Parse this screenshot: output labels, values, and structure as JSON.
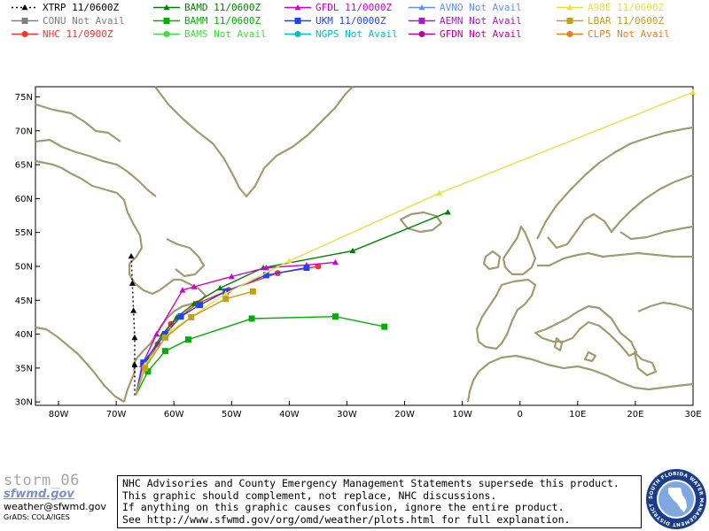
{
  "legend": [
    {
      "model": "XTRP",
      "status": "11/0600Z",
      "color": "#000000",
      "marker": "triangle",
      "dash": true
    },
    {
      "model": "CONU",
      "status": "Not Avail",
      "color": "#808080",
      "marker": "square",
      "dash": false
    },
    {
      "model": "NHC",
      "status": "11/0900Z",
      "color": "#ff3030",
      "marker": "circle",
      "dash": false
    },
    {
      "model": "BAMD",
      "status": "11/0600Z",
      "color": "#008000",
      "marker": "triangle",
      "dash": false
    },
    {
      "model": "BAMM",
      "status": "11/0600Z",
      "color": "#00b000",
      "marker": "square",
      "dash": false
    },
    {
      "model": "BAMS",
      "status": "Not Avail",
      "color": "#40e040",
      "marker": "circle",
      "dash": false
    },
    {
      "model": "GFDL",
      "status": "11/0000Z",
      "color": "#d000d0",
      "marker": "triangle",
      "dash": false
    },
    {
      "model": "UKM",
      "status": "11/0000Z",
      "color": "#2040ff",
      "marker": "square",
      "dash": false
    },
    {
      "model": "NGPS",
      "status": "Not Avail",
      "color": "#00c0c0",
      "marker": "circle",
      "dash": false
    },
    {
      "model": "AVNO",
      "status": "Not Avail",
      "color": "#6090ff",
      "marker": "triangle",
      "dash": false
    },
    {
      "model": "AEMN",
      "status": "Not Avail",
      "color": "#a020c0",
      "marker": "square",
      "dash": false
    },
    {
      "model": "GFDN",
      "status": "Not Avail",
      "color": "#c000a0",
      "marker": "circle",
      "dash": false
    },
    {
      "model": "A98E",
      "status": "11/0600Z",
      "color": "#e8e040",
      "marker": "triangle",
      "dash": false
    },
    {
      "model": "LBAR",
      "status": "11/0600Z",
      "color": "#c0a020",
      "marker": "square",
      "dash": false
    },
    {
      "model": "CLP5",
      "status": "Not Avail",
      "color": "#e88020",
      "marker": "circle",
      "dash": false
    }
  ],
  "chart_data": {
    "type": "line",
    "x_range": [
      -84,
      30
    ],
    "y_range": [
      29.5,
      76.5
    ],
    "x_ticks": [
      -80,
      -70,
      -60,
      -50,
      -40,
      -30,
      -20,
      -10,
      0,
      10,
      20,
      30
    ],
    "x_tick_labels": [
      "80W",
      "70W",
      "60W",
      "50W",
      "40W",
      "30W",
      "20W",
      "10W",
      "0",
      "10E",
      "20E",
      "30E"
    ],
    "y_ticks": [
      30,
      35,
      40,
      45,
      50,
      55,
      60,
      65,
      70,
      75
    ],
    "y_tick_labels": [
      "30N",
      "35N",
      "40N",
      "45N",
      "50N",
      "55N",
      "60N",
      "65N",
      "70N",
      "75N"
    ],
    "series": [
      {
        "name": "XTRP",
        "color": "#000000",
        "marker": "triangle",
        "dash": true,
        "points": [
          [
            -66.8,
            31.0
          ],
          [
            -66.8,
            35.5
          ],
          [
            -66.8,
            39.5
          ],
          [
            -67.0,
            43.5
          ],
          [
            -67.2,
            47.5
          ],
          [
            -67.4,
            51.5
          ]
        ]
      },
      {
        "name": "NHC",
        "color": "#ff3030",
        "marker": "circle",
        "dash": false,
        "points": [
          [
            -66.6,
            31.0
          ],
          [
            -65.2,
            35.0
          ],
          [
            -62.8,
            38.5
          ],
          [
            -60.5,
            41.5
          ],
          [
            -56.0,
            44.5
          ],
          [
            -50.5,
            46.5
          ],
          [
            -42.0,
            49.0
          ],
          [
            -35.0,
            50.0
          ]
        ]
      },
      {
        "name": "BAMD",
        "color": "#008000",
        "marker": "triangle",
        "dash": false,
        "points": [
          [
            -66.6,
            31.0
          ],
          [
            -64.5,
            36.5
          ],
          [
            -62.0,
            40.0
          ],
          [
            -59.5,
            42.5
          ],
          [
            -56.5,
            44.5
          ],
          [
            -52.0,
            46.8
          ],
          [
            -44.5,
            49.8
          ],
          [
            -29.0,
            52.3
          ],
          [
            -12.5,
            58.0
          ]
        ]
      },
      {
        "name": "BAMM",
        "color": "#00b000",
        "marker": "square",
        "dash": false,
        "points": [
          [
            -66.6,
            31.0
          ],
          [
            -64.5,
            34.5
          ],
          [
            -61.5,
            37.5
          ],
          [
            -57.5,
            39.2
          ],
          [
            -46.5,
            42.3
          ],
          [
            -32.0,
            42.6
          ],
          [
            -23.5,
            41.1
          ]
        ]
      },
      {
        "name": "GFDL",
        "color": "#d000d0",
        "marker": "triangle",
        "dash": false,
        "points": [
          [
            -66.6,
            31.0
          ],
          [
            -65.5,
            35.5
          ],
          [
            -63.0,
            40.0
          ],
          [
            -58.5,
            46.5
          ],
          [
            -56.5,
            47.0
          ],
          [
            -50.0,
            48.5
          ],
          [
            -44.0,
            49.8
          ],
          [
            -37.0,
            50.2
          ],
          [
            -32.0,
            50.6
          ]
        ]
      },
      {
        "name": "UKM",
        "color": "#2040ff",
        "marker": "square",
        "dash": false,
        "points": [
          [
            -66.6,
            31.0
          ],
          [
            -65.3,
            35.8
          ],
          [
            -61.5,
            40.0
          ],
          [
            -58.8,
            42.6
          ],
          [
            -55.5,
            44.3
          ],
          [
            -51.0,
            46.3
          ],
          [
            -44.0,
            48.7
          ],
          [
            -37.0,
            49.8
          ]
        ]
      },
      {
        "name": "A98E",
        "color": "#e8e040",
        "marker": "triangle",
        "dash": false,
        "points": [
          [
            -66.6,
            31.0
          ],
          [
            -65.0,
            35.5
          ],
          [
            -60.5,
            40.5
          ],
          [
            -51.0,
            46.0
          ],
          [
            -40.0,
            50.8
          ],
          [
            -14.0,
            60.8
          ],
          [
            30.0,
            75.7
          ]
        ]
      },
      {
        "name": "LBAR",
        "color": "#c0a020",
        "marker": "square",
        "dash": false,
        "points": [
          [
            -66.6,
            31.0
          ],
          [
            -65.0,
            35.0
          ],
          [
            -61.5,
            39.5
          ],
          [
            -57.0,
            42.5
          ],
          [
            -51.0,
            45.2
          ],
          [
            -46.3,
            46.3
          ]
        ]
      }
    ]
  },
  "footer": {
    "storm_name": "storm_06",
    "site": "sfwmd.gov",
    "email": "weather@sfwmd.gov",
    "credit": "GrADS: COLA/IGES"
  },
  "disclaimer": {
    "line1": "NHC Advisories and County Emergency Management Statements supersede this product.",
    "line2": "This graphic should complement, not replace, NHC discussions.",
    "line3": "If anything on this graphic causes confusion, ignore the entire product.",
    "line4": "See  http://www.sfwmd.gov/org/omd/weather/plots.html  for full explanation."
  },
  "logo": {
    "ring_text": "SOUTH FLORIDA WATER MANAGEMENT DISTRICT",
    "color": "#1a3c8c"
  }
}
